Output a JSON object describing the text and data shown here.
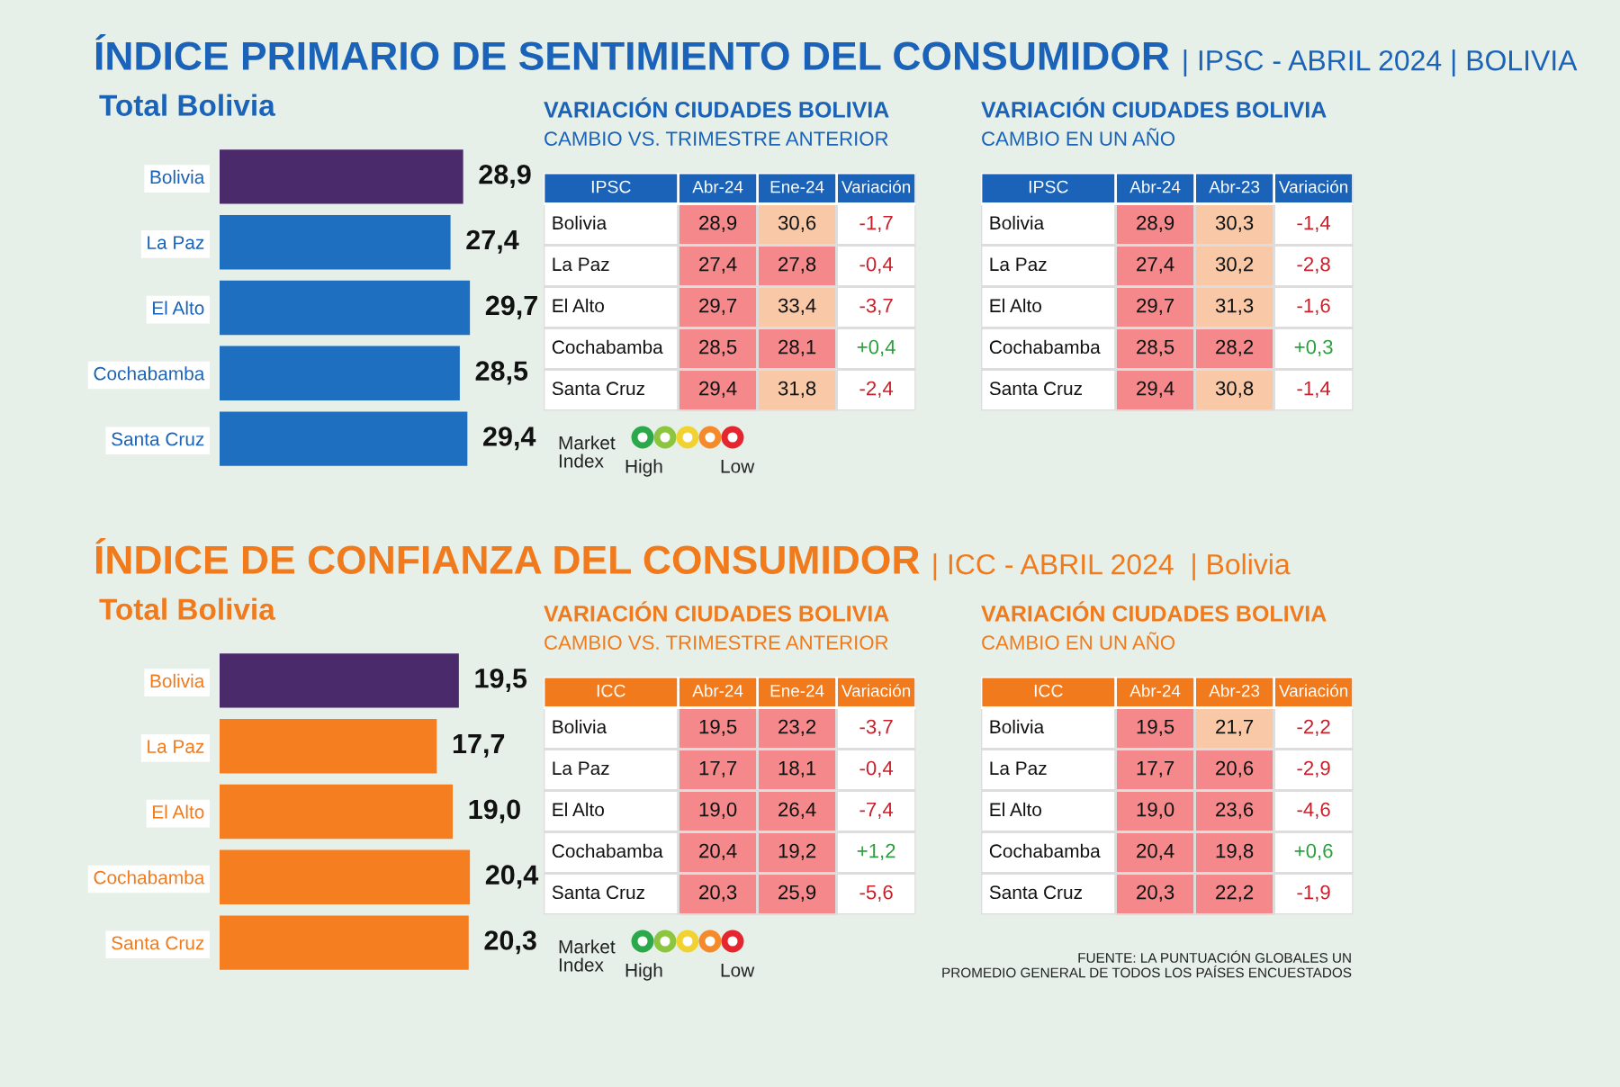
{
  "chart_data": [
    {
      "type": "bar",
      "orientation": "horizontal",
      "title": "ÍNDICE PRIMARIO DE SENTIMIENTO DEL CONSUMIDOR",
      "subtitle": "Total Bolivia",
      "annotations": [
        "| IPSC - ABRIL 2024 | BOLIVIA"
      ],
      "categories": [
        "Bolivia",
        "La Paz",
        "El Alto",
        "Cochabamba",
        "Santa Cruz"
      ],
      "values": [
        28.9,
        27.4,
        29.7,
        28.5,
        29.4
      ],
      "value_labels": [
        "28,9",
        "27,4",
        "29,7",
        "28,5",
        "29,4"
      ],
      "colors": [
        "#4b2a6b",
        "#1f6fc1",
        "#1f6fc1",
        "#1f6fc1",
        "#1f6fc1"
      ]
    },
    {
      "type": "heatmap",
      "title": "VARIACIÓN CIUDADES BOLIVIA",
      "subtitle": "CAMBIO VS. TRIMESTRE ANTERIOR",
      "ylabel": "IPSC",
      "annotations": [
        "Market\nIndex",
        "High",
        "Low"
      ],
      "categories": [
        "Abr-24",
        "Ene-24",
        "Variación"
      ],
      "y_categories": [
        "Bolivia",
        "La Paz",
        "El Alto",
        "Cochabamba",
        "Santa Cruz"
      ],
      "cells": [
        [
          28.9,
          30.6,
          -1.7
        ],
        [
          27.4,
          27.8,
          -0.4
        ],
        [
          29.7,
          33.4,
          -3.7
        ],
        [
          28.5,
          28.1,
          0.4
        ],
        [
          29.4,
          31.8,
          -2.4
        ]
      ],
      "cell_labels": [
        [
          "28,9",
          "30,6",
          "-1,7"
        ],
        [
          "27,4",
          "27,8",
          "-0,4"
        ],
        [
          "29,7",
          "33,4",
          "-3,7"
        ],
        [
          "28,5",
          "28,1",
          "+0,4"
        ],
        [
          "29,4",
          "31,8",
          "-2,4"
        ]
      ],
      "colors": [
        [
          "#f4888a",
          "#f9c8a6",
          "#ffffff"
        ],
        [
          "#f4888a",
          "#f4888a",
          "#ffffff"
        ],
        [
          "#f4888a",
          "#f9c8a6",
          "#ffffff"
        ],
        [
          "#f4888a",
          "#f4888a",
          "#ffffff"
        ],
        [
          "#f4888a",
          "#f9c8a6",
          "#ffffff"
        ]
      ]
    },
    {
      "type": "heatmap",
      "title": "VARIACIÓN CIUDADES BOLIVIA",
      "subtitle": "CAMBIO EN UN AÑO",
      "ylabel": "IPSC",
      "categories": [
        "Abr-24",
        "Abr-23",
        "Variación"
      ],
      "y_categories": [
        "Bolivia",
        "La Paz",
        "El Alto",
        "Cochabamba",
        "Santa Cruz"
      ],
      "cells": [
        [
          28.9,
          30.3,
          -1.4
        ],
        [
          27.4,
          30.2,
          -2.8
        ],
        [
          29.7,
          31.3,
          -1.6
        ],
        [
          28.5,
          28.2,
          0.3
        ],
        [
          29.4,
          30.8,
          -1.4
        ]
      ],
      "cell_labels": [
        [
          "28,9",
          "30,3",
          "-1,4"
        ],
        [
          "27,4",
          "30,2",
          "-2,8"
        ],
        [
          "29,7",
          "31,3",
          "-1,6"
        ],
        [
          "28,5",
          "28,2",
          "+0,3"
        ],
        [
          "29,4",
          "30,8",
          "-1,4"
        ]
      ],
      "colors": [
        [
          "#f4888a",
          "#f9c8a6",
          "#ffffff"
        ],
        [
          "#f4888a",
          "#f9c8a6",
          "#ffffff"
        ],
        [
          "#f4888a",
          "#f9c8a6",
          "#ffffff"
        ],
        [
          "#f4888a",
          "#f4888a",
          "#ffffff"
        ],
        [
          "#f4888a",
          "#f9c8a6",
          "#ffffff"
        ]
      ]
    },
    {
      "type": "bar",
      "orientation": "horizontal",
      "title": "ÍNDICE DE CONFIANZA DEL CONSUMIDOR",
      "subtitle": "Total Bolivia",
      "annotations": [
        "| ICC - ABRIL 2024  | Bolivia"
      ],
      "categories": [
        "Bolivia",
        "La Paz",
        "El Alto",
        "Cochabamba",
        "Santa Cruz"
      ],
      "values": [
        19.5,
        17.7,
        19.0,
        20.4,
        20.3
      ],
      "value_labels": [
        "19,5",
        "17,7",
        "19,0",
        "20,4",
        "20,3"
      ],
      "colors": [
        "#4b2a6b",
        "#f57f20",
        "#f57f20",
        "#f57f20",
        "#f57f20"
      ]
    },
    {
      "type": "heatmap",
      "title": "VARIACIÓN CIUDADES BOLIVIA",
      "subtitle": "CAMBIO VS. TRIMESTRE ANTERIOR",
      "ylabel": "ICC",
      "annotations": [
        "Market\nIndex",
        "High",
        "Low"
      ],
      "categories": [
        "Abr-24",
        "Ene-24",
        "Variación"
      ],
      "y_categories": [
        "Bolivia",
        "La Paz",
        "El Alto",
        "Cochabamba",
        "Santa Cruz"
      ],
      "cells": [
        [
          19.5,
          23.2,
          -3.7
        ],
        [
          17.7,
          18.1,
          -0.4
        ],
        [
          19.0,
          26.4,
          -7.4
        ],
        [
          20.4,
          19.2,
          1.2
        ],
        [
          20.3,
          25.9,
          -5.6
        ]
      ],
      "cell_labels": [
        [
          "19,5",
          "23,2",
          "-3,7"
        ],
        [
          "17,7",
          "18,1",
          "-0,4"
        ],
        [
          "19,0",
          "26,4",
          "-7,4"
        ],
        [
          "20,4",
          "19,2",
          "+1,2"
        ],
        [
          "20,3",
          "25,9",
          "-5,6"
        ]
      ],
      "colors": [
        [
          "#f4888a",
          "#f4888a",
          "#ffffff"
        ],
        [
          "#f4888a",
          "#f4888a",
          "#ffffff"
        ],
        [
          "#f4888a",
          "#f4888a",
          "#ffffff"
        ],
        [
          "#f4888a",
          "#f4888a",
          "#ffffff"
        ],
        [
          "#f4888a",
          "#f4888a",
          "#ffffff"
        ]
      ]
    },
    {
      "type": "heatmap",
      "title": "VARIACIÓN CIUDADES BOLIVIA",
      "subtitle": "CAMBIO EN UN AÑO",
      "ylabel": "ICC",
      "annotations": [
        "FUENTE: LA PUNTUACIÓN GLOBALES UN\nPROMEDIO GENERAL DE TODOS LOS PAÍSES ENCUESTADOS"
      ],
      "categories": [
        "Abr-24",
        "Abr-23",
        "Variación"
      ],
      "y_categories": [
        "Bolivia",
        "La Paz",
        "El Alto",
        "Cochabamba",
        "Santa Cruz"
      ],
      "cells": [
        [
          19.5,
          21.7,
          -2.2
        ],
        [
          17.7,
          20.6,
          -2.9
        ],
        [
          19.0,
          23.6,
          -4.6
        ],
        [
          20.4,
          19.8,
          0.6
        ],
        [
          20.3,
          22.2,
          -1.9
        ]
      ],
      "cell_labels": [
        [
          "19,5",
          "21,7",
          "-2,2"
        ],
        [
          "17,7",
          "20,6",
          "-2,9"
        ],
        [
          "19,0",
          "23,6",
          "-4,6"
        ],
        [
          "20,4",
          "19,8",
          "+0,6"
        ],
        [
          "20,3",
          "22,2",
          "-1,9"
        ]
      ],
      "colors": [
        [
          "#f4888a",
          "#f9c8a6",
          "#ffffff"
        ],
        [
          "#f4888a",
          "#f4888a",
          "#ffffff"
        ],
        [
          "#f4888a",
          "#f4888a",
          "#ffffff"
        ],
        [
          "#f4888a",
          "#f4888a",
          "#ffffff"
        ],
        [
          "#f4888a",
          "#f4888a",
          "#ffffff"
        ]
      ]
    }
  ]
}
